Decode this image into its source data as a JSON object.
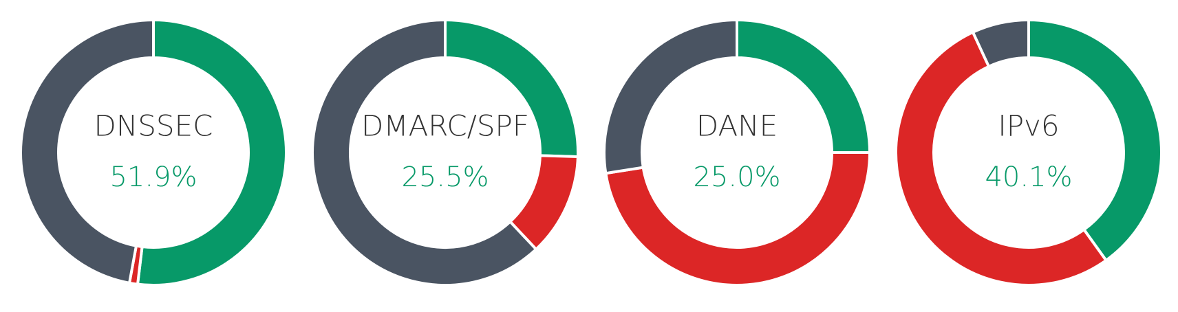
{
  "chart_data": [
    {
      "type": "donut",
      "title": "DNSSEC",
      "values": [
        51.9,
        1.0,
        47.1
      ],
      "value_labels": [
        "51.9%",
        null,
        null
      ],
      "colors": [
        "#079968",
        "#dc2626",
        "#4a5462"
      ]
    },
    {
      "type": "donut",
      "title": "DMARC/SPF",
      "values": [
        25.5,
        12.5,
        62.0
      ],
      "value_labels": [
        "25.5%",
        null,
        null
      ],
      "colors": [
        "#079968",
        "#dc2626",
        "#4a5462"
      ]
    },
    {
      "type": "donut",
      "title": "DANE",
      "values": [
        25.0,
        47.5,
        27.5
      ],
      "value_labels": [
        "25.0%",
        null,
        null
      ],
      "colors": [
        "#079968",
        "#dc2626",
        "#4a5462"
      ]
    },
    {
      "type": "donut",
      "title": "IPv6",
      "values": [
        40.1,
        53.0,
        6.9
      ],
      "value_labels": [
        "40.1%",
        null,
        null
      ],
      "colors": [
        "#079968",
        "#dc2626",
        "#4a5462"
      ]
    }
  ]
}
